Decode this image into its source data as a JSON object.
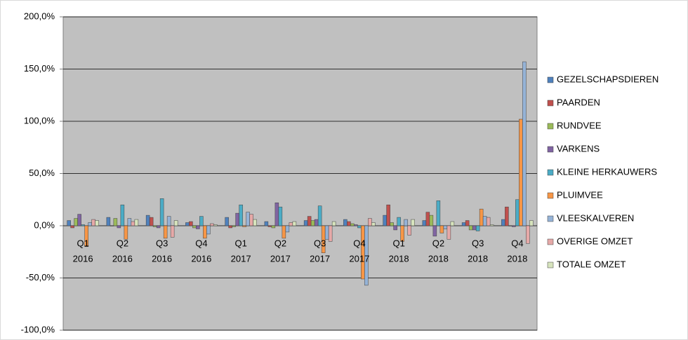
{
  "chart_data": {
    "type": "bar",
    "categories": [
      [
        "Q1",
        "2016"
      ],
      [
        "Q2",
        "2016"
      ],
      [
        "Q3",
        "2016"
      ],
      [
        "Q4",
        "2016"
      ],
      [
        "Q1",
        "2017"
      ],
      [
        "Q2",
        "2017"
      ],
      [
        "Q3",
        "2017"
      ],
      [
        "Q4",
        "2017"
      ],
      [
        "Q1",
        "2018"
      ],
      [
        "Q2",
        "2018"
      ],
      [
        "Q3",
        "2018"
      ],
      [
        "Q4",
        "2018"
      ]
    ],
    "series": [
      {
        "name": "GEZELSCHAPSDIEREN",
        "color": "#4f81bd",
        "values": [
          5,
          8,
          10,
          3,
          8,
          4,
          5,
          6,
          10,
          5,
          3,
          6
        ]
      },
      {
        "name": "PAARDEN",
        "color": "#c0504d",
        "values": [
          -2,
          0,
          8,
          4,
          -2,
          -1,
          9,
          4,
          20,
          13,
          5,
          18
        ]
      },
      {
        "name": "RUNDVEE",
        "color": "#9bbb59",
        "values": [
          7,
          7,
          -1,
          -2,
          -1,
          -2,
          5,
          2,
          3,
          10,
          -4,
          0
        ]
      },
      {
        "name": "VARKENS",
        "color": "#8064a2",
        "values": [
          11,
          -2,
          -2,
          -3,
          12,
          22,
          6,
          1,
          -4,
          -10,
          -4,
          -1
        ]
      },
      {
        "name": "KLEINE HERKAUWERS",
        "color": "#4bacc6",
        "values": [
          1,
          20,
          26,
          9,
          20,
          18,
          19,
          -2,
          8,
          24,
          -5,
          25
        ]
      },
      {
        "name": "PLUIMVEE",
        "color": "#f79646",
        "values": [
          -20,
          -13,
          -12,
          -12,
          -1,
          -12,
          -26,
          -51,
          -15,
          -7,
          16,
          102
        ]
      },
      {
        "name": "VLEESKALVEREN",
        "color": "#95b3d7",
        "values": [
          3,
          7,
          9,
          -8,
          13,
          -6,
          -13,
          -57,
          6,
          -3,
          9,
          157
        ]
      },
      {
        "name": "OVERIGE OMZET",
        "color": "#e6a9a8",
        "values": [
          6,
          4,
          -11,
          2,
          11,
          3,
          -15,
          7,
          -9,
          -13,
          8,
          -17
        ]
      },
      {
        "name": "TOTALE OMZET",
        "color": "#d7e4bd",
        "values": [
          5,
          6,
          5,
          1,
          6,
          4,
          4,
          3,
          6,
          4,
          1,
          5
        ]
      }
    ],
    "ylim": [
      -100,
      200
    ],
    "yticks": [
      {
        "value": -100,
        "label": "-100,0%"
      },
      {
        "value": -50,
        "label": "-50,0%"
      },
      {
        "value": 0,
        "label": "0,0%"
      },
      {
        "value": 50,
        "label": "50,0%"
      },
      {
        "value": 100,
        "label": "100,0%"
      },
      {
        "value": 150,
        "label": "150,0%"
      },
      {
        "value": 200,
        "label": "200,0%"
      }
    ],
    "grid": true,
    "legend": "right"
  }
}
